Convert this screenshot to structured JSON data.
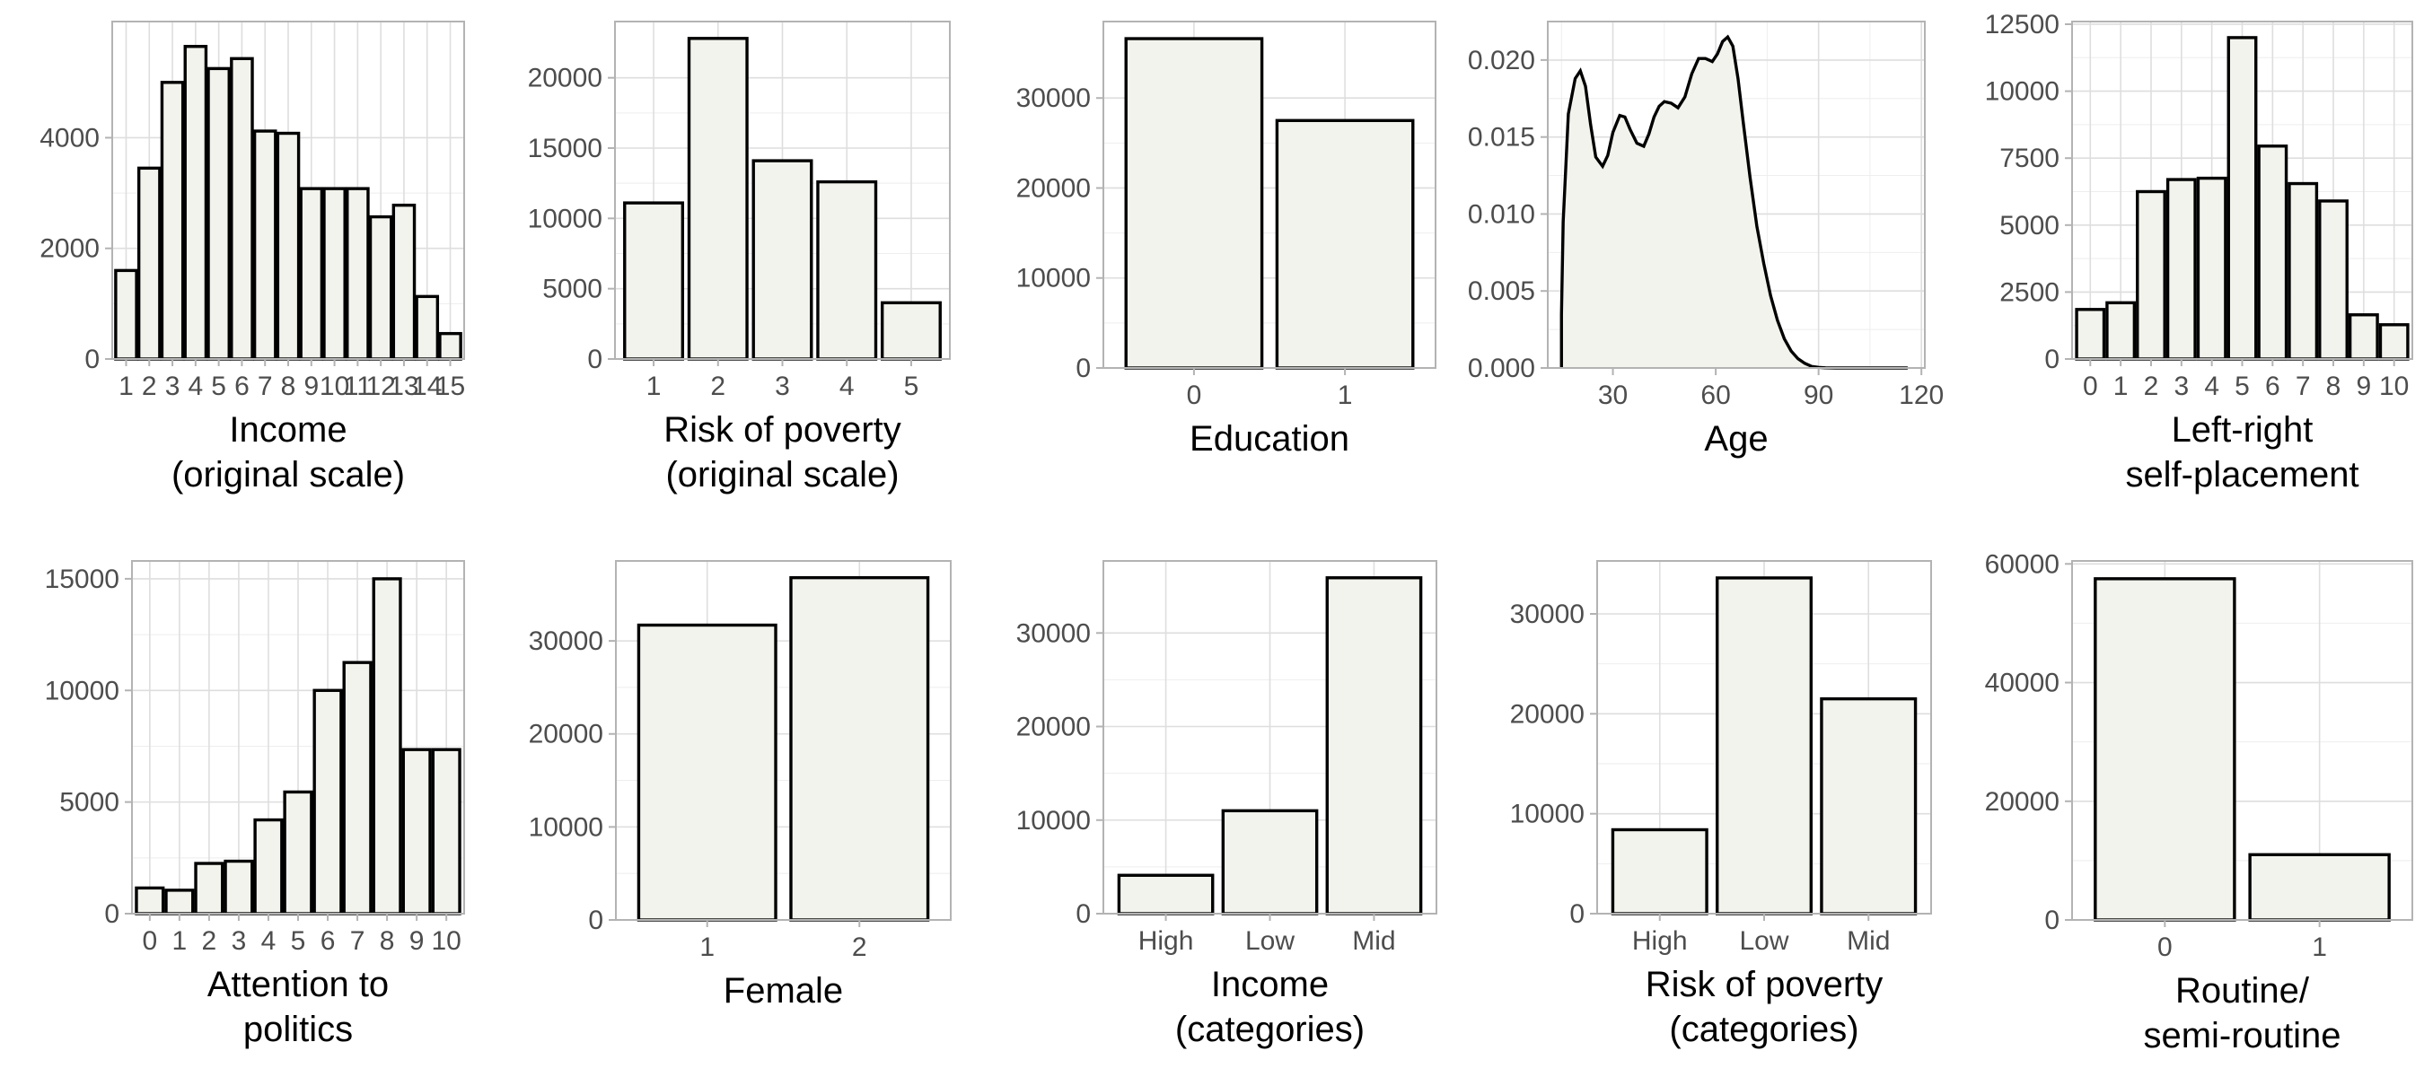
{
  "chart_data": [
    {
      "type": "bar",
      "xlabel": [
        "Income",
        "(original scale)"
      ],
      "categories": [
        "1",
        "2",
        "3",
        "4",
        "5",
        "6",
        "7",
        "8",
        "9",
        "10",
        "11",
        "12",
        "13",
        "14",
        "15"
      ],
      "values": [
        1600,
        3450,
        5000,
        5650,
        5250,
        5430,
        4120,
        4080,
        3080,
        3080,
        3080,
        2570,
        2780,
        1130,
        460
      ],
      "ylim": [
        0,
        6100
      ],
      "yticks": [
        0,
        2000,
        4000
      ],
      "grid": true
    },
    {
      "type": "bar",
      "xlabel": [
        "Risk of poverty",
        "(original scale)"
      ],
      "categories": [
        "1",
        "2",
        "3",
        "4",
        "5"
      ],
      "values": [
        11100,
        22800,
        14100,
        12600,
        4000
      ],
      "ylim": [
        0,
        24000
      ],
      "yticks": [
        0,
        5000,
        10000,
        15000,
        20000
      ],
      "grid": true
    },
    {
      "type": "bar",
      "xlabel": [
        "Education"
      ],
      "categories": [
        "0",
        "1"
      ],
      "values": [
        36600,
        27500
      ],
      "ylim": [
        0,
        38500
      ],
      "yticks": [
        0,
        10000,
        20000,
        30000
      ],
      "grid": true
    },
    {
      "type": "area",
      "xlabel": [
        "Age"
      ],
      "x": [
        15,
        15.5,
        17,
        19,
        20.5,
        22,
        23.5,
        25,
        27,
        28.5,
        30,
        32,
        33.5,
        35,
        37,
        39,
        40.5,
        42,
        43.5,
        45,
        47,
        49,
        51,
        53,
        55,
        57,
        59,
        60.5,
        62,
        63.5,
        65,
        66.5,
        68,
        70,
        72,
        74,
        76,
        78,
        80,
        82,
        84,
        86,
        88,
        90,
        92,
        95,
        100,
        105,
        110,
        116
      ],
      "y": [
        0.0035,
        0.0095,
        0.0165,
        0.0188,
        0.0193,
        0.0183,
        0.0158,
        0.0137,
        0.0131,
        0.0138,
        0.0153,
        0.0164,
        0.0163,
        0.0155,
        0.0146,
        0.0144,
        0.0152,
        0.0163,
        0.017,
        0.0173,
        0.0172,
        0.0169,
        0.0176,
        0.0191,
        0.0201,
        0.0201,
        0.0199,
        0.0204,
        0.0212,
        0.0215,
        0.0209,
        0.0188,
        0.016,
        0.0124,
        0.0092,
        0.0068,
        0.0047,
        0.0031,
        0.0019,
        0.0011,
        0.0006,
        0.0003,
        0.0001,
        4e-05,
        1e-05,
        0,
        0,
        0,
        0,
        0
      ],
      "xlim": [
        11,
        121
      ],
      "xticks": [
        30,
        60,
        90,
        120
      ],
      "ylim": [
        0,
        0.0225
      ],
      "yticks": [
        0,
        0.005,
        0.01,
        0.015,
        0.02
      ],
      "ytick_labels": [
        "0.000",
        "0.005",
        "0.010",
        "0.015",
        "0.020"
      ],
      "grid": true
    },
    {
      "type": "bar",
      "xlabel": [
        "Left-right",
        "self-placement"
      ],
      "categories": [
        "0",
        "1",
        "2",
        "3",
        "4",
        "5",
        "6",
        "7",
        "8",
        "9",
        "10"
      ],
      "values": [
        1850,
        2100,
        6250,
        6700,
        6750,
        12000,
        7950,
        6550,
        5900,
        1650,
        1280
      ],
      "ylim": [
        0,
        12600
      ],
      "yticks": [
        0,
        2500,
        5000,
        7500,
        10000,
        12500
      ],
      "grid": true
    },
    {
      "type": "bar",
      "xlabel": [
        "Attention to",
        "politics"
      ],
      "categories": [
        "0",
        "1",
        "2",
        "3",
        "4",
        "5",
        "6",
        "7",
        "8",
        "9",
        "10"
      ],
      "values": [
        1150,
        1050,
        2250,
        2350,
        4200,
        5450,
        10000,
        11250,
        15000,
        7350,
        7350
      ],
      "ylim": [
        0,
        15800
      ],
      "yticks": [
        0,
        5000,
        10000,
        15000
      ],
      "grid": true
    },
    {
      "type": "bar",
      "xlabel": [
        "Female"
      ],
      "categories": [
        "1",
        "2"
      ],
      "values": [
        31700,
        36800
      ],
      "ylim": [
        0,
        38600
      ],
      "yticks": [
        0,
        10000,
        20000,
        30000
      ],
      "grid": true
    },
    {
      "type": "bar",
      "xlabel": [
        "Income",
        "(categories)"
      ],
      "categories": [
        "High",
        "Low",
        "Mid"
      ],
      "values": [
        4100,
        11000,
        35900
      ],
      "ylim": [
        0,
        37700
      ],
      "yticks": [
        0,
        10000,
        20000,
        30000
      ],
      "grid": true
    },
    {
      "type": "bar",
      "xlabel": [
        "Risk of poverty",
        "(categories)"
      ],
      "categories": [
        "High",
        "Low",
        "Mid"
      ],
      "values": [
        8400,
        33600,
        21500
      ],
      "ylim": [
        0,
        35300
      ],
      "yticks": [
        0,
        10000,
        20000,
        30000
      ],
      "grid": true
    },
    {
      "type": "bar",
      "xlabel": [
        "Routine/",
        "semi-routine"
      ],
      "categories": [
        "0",
        "1"
      ],
      "values": [
        57500,
        11000
      ],
      "ylim": [
        0,
        60500
      ],
      "yticks": [
        0,
        20000,
        40000,
        60000
      ],
      "grid": true
    }
  ]
}
